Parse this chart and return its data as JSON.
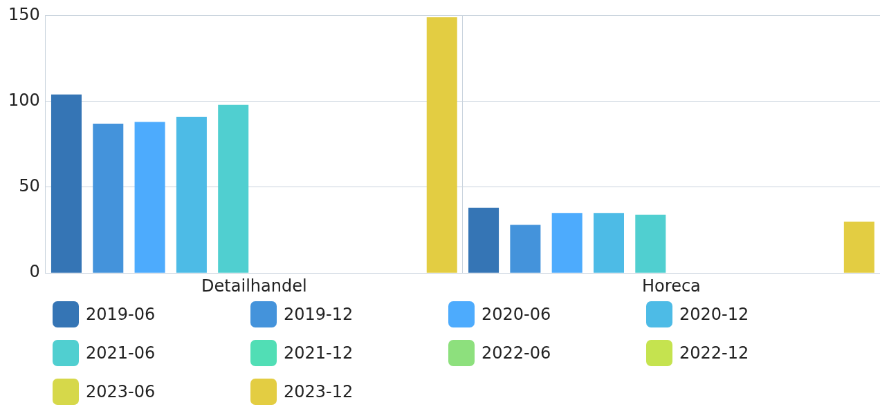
{
  "chart_data": {
    "type": "bar",
    "categories": [
      "Detailhandel",
      "Horeca"
    ],
    "series": [
      {
        "name": "2019-06",
        "color": "#3575b5",
        "values": [
          104,
          38
        ]
      },
      {
        "name": "2019-12",
        "color": "#4493db",
        "values": [
          87,
          28
        ]
      },
      {
        "name": "2020-06",
        "color": "#4dabfd",
        "values": [
          88,
          35
        ]
      },
      {
        "name": "2020-12",
        "color": "#4dbbe6",
        "values": [
          91,
          35
        ]
      },
      {
        "name": "2021-06",
        "color": "#50cfd0",
        "values": [
          98,
          34
        ]
      },
      {
        "name": "2021-12",
        "color": "#51deb5",
        "values": [
          null,
          null
        ]
      },
      {
        "name": "2022-06",
        "color": "#8de07d",
        "values": [
          null,
          null
        ]
      },
      {
        "name": "2022-12",
        "color": "#c5e34f",
        "values": [
          null,
          null
        ]
      },
      {
        "name": "2023-06",
        "color": "#d6d84a",
        "values": [
          null,
          null
        ]
      },
      {
        "name": "2023-12",
        "color": "#e3cd42",
        "values": [
          149,
          30
        ]
      }
    ],
    "ylim": [
      0,
      150
    ],
    "yticks": [
      0,
      50,
      100,
      150
    ],
    "grid": true,
    "legend": "bottom"
  }
}
